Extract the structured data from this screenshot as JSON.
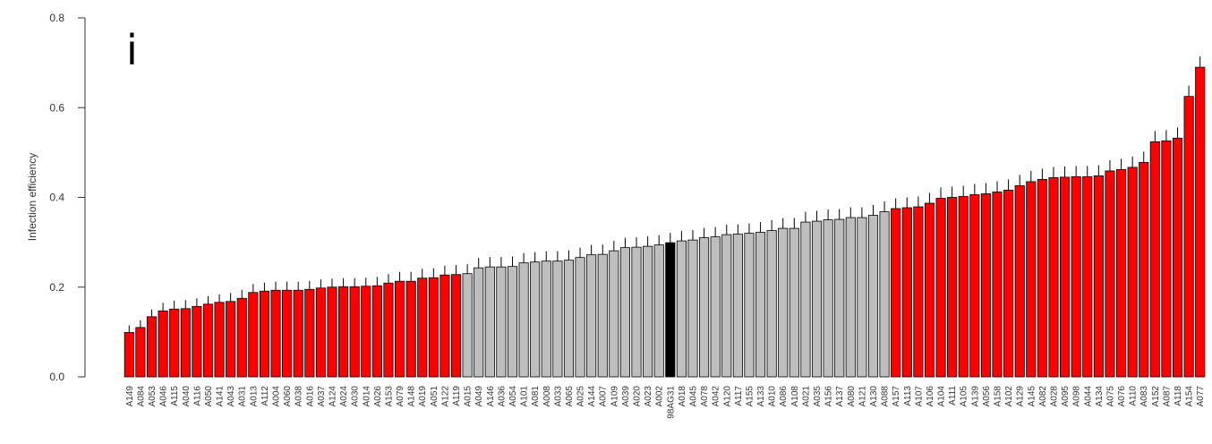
{
  "chart_data": {
    "type": "bar",
    "panel_label": "i",
    "ylabel": "Infection efficiency",
    "ylim": [
      0,
      0.8
    ],
    "yticks": [
      "0.0",
      "0.2",
      "0.4",
      "0.6",
      "0.8"
    ],
    "ytick_values": [
      0,
      0.2,
      0.4,
      0.6,
      0.8
    ],
    "colors": {
      "red": "#ff0000",
      "gray": "#bebebe",
      "black": "#000000"
    },
    "categories": [
      "A149",
      "A084",
      "A053",
      "A046",
      "A115",
      "A040",
      "A116",
      "A050",
      "A141",
      "A043",
      "A031",
      "A013",
      "A112",
      "A004",
      "A060",
      "A038",
      "A016",
      "A037",
      "A124",
      "A024",
      "A030",
      "A014",
      "A026",
      "A153",
      "A079",
      "A148",
      "A019",
      "A051",
      "A122",
      "A119",
      "A015",
      "A049",
      "A146",
      "A036",
      "A054",
      "A101",
      "A081",
      "A008",
      "A033",
      "A065",
      "A025",
      "A144",
      "A007",
      "A109",
      "A039",
      "A020",
      "A023",
      "A002",
      "98AG31",
      "A018",
      "A045",
      "A078",
      "A042",
      "A120",
      "A117",
      "A155",
      "A133",
      "A010",
      "A086",
      "A108",
      "A021",
      "A035",
      "A156",
      "A137",
      "A080",
      "A121",
      "A130",
      "A088",
      "A157",
      "A113",
      "A107",
      "A106",
      "A104",
      "A111",
      "A105",
      "A139",
      "A056",
      "A158",
      "A102",
      "A129",
      "A145",
      "A082",
      "A028",
      "A095",
      "A098",
      "A044",
      "A134",
      "A075",
      "A076",
      "A110",
      "A083",
      "A152",
      "A087",
      "A118",
      "A154",
      "A077"
    ],
    "values": [
      0.099,
      0.11,
      0.134,
      0.147,
      0.151,
      0.152,
      0.157,
      0.162,
      0.166,
      0.168,
      0.175,
      0.188,
      0.191,
      0.193,
      0.193,
      0.193,
      0.195,
      0.198,
      0.2,
      0.201,
      0.201,
      0.202,
      0.203,
      0.209,
      0.213,
      0.213,
      0.22,
      0.221,
      0.227,
      0.228,
      0.23,
      0.243,
      0.245,
      0.245,
      0.246,
      0.254,
      0.256,
      0.258,
      0.258,
      0.26,
      0.266,
      0.272,
      0.273,
      0.281,
      0.288,
      0.289,
      0.291,
      0.294,
      0.299,
      0.303,
      0.305,
      0.31,
      0.312,
      0.317,
      0.318,
      0.32,
      0.322,
      0.326,
      0.331,
      0.331,
      0.345,
      0.347,
      0.35,
      0.351,
      0.355,
      0.355,
      0.36,
      0.368,
      0.375,
      0.377,
      0.379,
      0.387,
      0.398,
      0.4,
      0.402,
      0.406,
      0.408,
      0.412,
      0.416,
      0.426,
      0.435,
      0.44,
      0.444,
      0.445,
      0.446,
      0.446,
      0.448,
      0.459,
      0.462,
      0.467,
      0.478,
      0.524,
      0.526,
      0.532,
      0.625,
      0.69
    ],
    "errors": [
      0.016,
      0.016,
      0.016,
      0.018,
      0.019,
      0.019,
      0.018,
      0.018,
      0.018,
      0.019,
      0.019,
      0.019,
      0.019,
      0.019,
      0.019,
      0.019,
      0.019,
      0.019,
      0.019,
      0.019,
      0.019,
      0.019,
      0.02,
      0.02,
      0.021,
      0.021,
      0.021,
      0.021,
      0.021,
      0.021,
      0.021,
      0.022,
      0.022,
      0.022,
      0.022,
      0.022,
      0.022,
      0.022,
      0.022,
      0.022,
      0.022,
      0.022,
      0.022,
      0.022,
      0.022,
      0.022,
      0.022,
      0.022,
      0.022,
      0.022,
      0.022,
      0.022,
      0.022,
      0.022,
      0.022,
      0.022,
      0.023,
      0.023,
      0.023,
      0.023,
      0.023,
      0.023,
      0.023,
      0.023,
      0.023,
      0.023,
      0.023,
      0.023,
      0.023,
      0.023,
      0.023,
      0.023,
      0.024,
      0.024,
      0.024,
      0.024,
      0.024,
      0.024,
      0.024,
      0.024,
      0.024,
      0.024,
      0.024,
      0.024,
      0.024,
      0.024,
      0.024,
      0.024,
      0.024,
      0.024,
      0.024,
      0.024,
      0.024,
      0.024,
      0.024,
      0.024
    ],
    "bar_colors": [
      "red",
      "red",
      "red",
      "red",
      "red",
      "red",
      "red",
      "red",
      "red",
      "red",
      "red",
      "red",
      "red",
      "red",
      "red",
      "red",
      "red",
      "red",
      "red",
      "red",
      "red",
      "red",
      "red",
      "red",
      "red",
      "red",
      "red",
      "red",
      "red",
      "red",
      "gray",
      "gray",
      "gray",
      "gray",
      "gray",
      "gray",
      "gray",
      "gray",
      "gray",
      "gray",
      "gray",
      "gray",
      "gray",
      "gray",
      "gray",
      "gray",
      "gray",
      "gray",
      "black",
      "gray",
      "gray",
      "gray",
      "gray",
      "gray",
      "gray",
      "gray",
      "gray",
      "gray",
      "gray",
      "gray",
      "gray",
      "gray",
      "gray",
      "gray",
      "gray",
      "gray",
      "gray",
      "gray",
      "red",
      "red",
      "red",
      "red",
      "red",
      "red",
      "red",
      "red",
      "red",
      "red",
      "red",
      "red",
      "red",
      "red",
      "red",
      "red",
      "red",
      "red",
      "red",
      "red",
      "red",
      "red",
      "red",
      "red",
      "red",
      "red",
      "red",
      "red"
    ]
  }
}
